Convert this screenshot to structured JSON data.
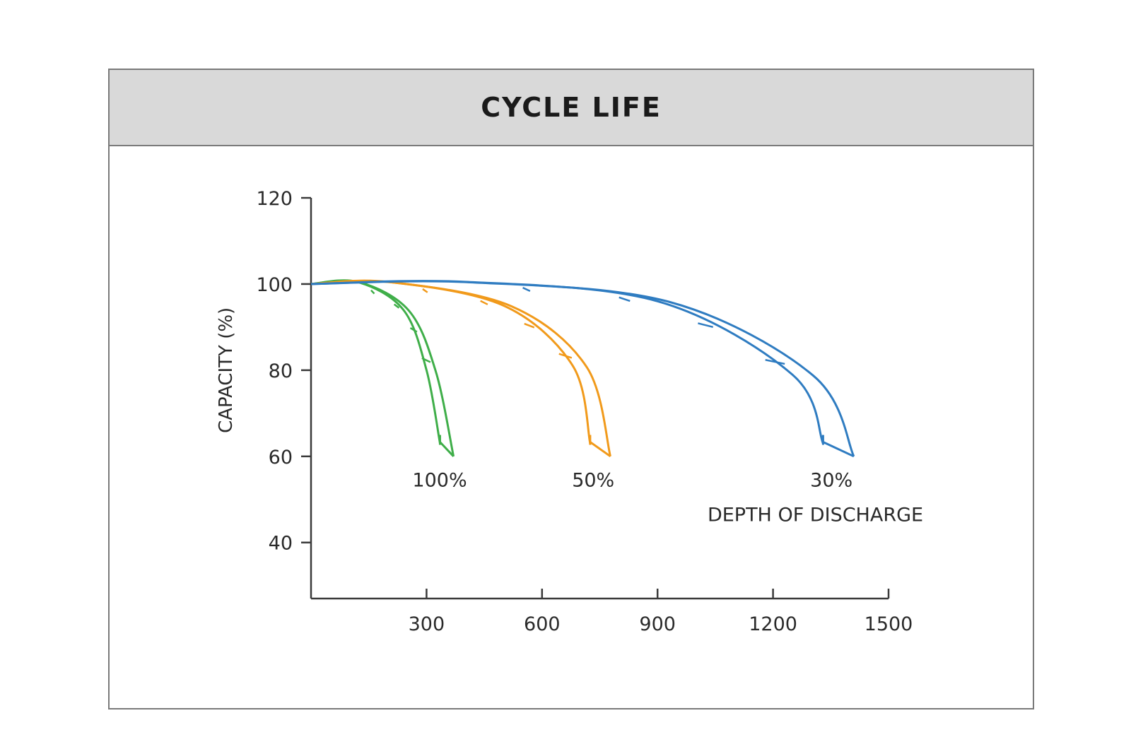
{
  "header": {
    "title": "CYCLE LIFE"
  },
  "chart_data": {
    "type": "line",
    "title": "CYCLE LIFE",
    "xlabel": "",
    "ylabel": "CAPACITY (%)",
    "xlim": [
      0,
      1500
    ],
    "ylim": [
      27,
      120
    ],
    "xticks": [
      "300",
      "600",
      "900",
      "1200",
      "1500"
    ],
    "yticks": [
      "120",
      "100",
      "80",
      "60",
      "40"
    ],
    "annotation": "DEPTH OF DISCHARGE",
    "colors": {
      "axis": "#3a3a3a",
      "green": "#3fae49",
      "orange": "#f19a1b",
      "blue": "#2f7cc1"
    },
    "series": [
      {
        "name": "100%",
        "color": "#3fae49",
        "x": [
          0,
          120,
          240,
          300,
          335
        ],
        "y": [
          100,
          100.5,
          94,
          80,
          63
        ]
      },
      {
        "name": "50%",
        "color": "#f19a1b",
        "x": [
          0,
          200,
          500,
          680,
          725
        ],
        "y": [
          100,
          100.5,
          95,
          81,
          63
        ]
      },
      {
        "name": "30%",
        "color": "#2f7cc1",
        "x": [
          0,
          400,
          900,
          1250,
          1330
        ],
        "y": [
          100,
          100.5,
          96,
          79,
          63
        ]
      }
    ]
  }
}
